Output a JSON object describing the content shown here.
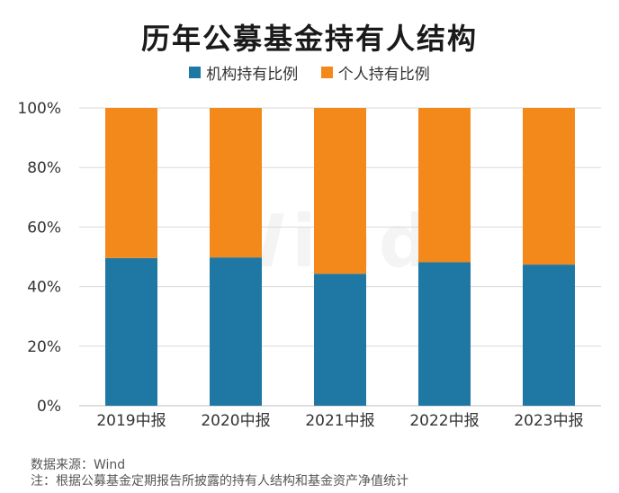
{
  "title": "历年公募基金持有人结构",
  "watermark": "Wind",
  "colors": {
    "institution": "#1f77a4",
    "individual": "#f4891b",
    "grid": "#d9d9d9",
    "axis": "#bfbfbf"
  },
  "chart_data": {
    "type": "bar",
    "stacked": true,
    "title": "历年公募基金持有人结构",
    "categories": [
      "2019中报",
      "2020中报",
      "2021中报",
      "2022中报",
      "2023中报"
    ],
    "series": [
      {
        "name": "机构持有比例",
        "values": [
          49.6,
          49.8,
          44.3,
          48.2,
          47.4
        ]
      },
      {
        "name": "个人持有比例",
        "values": [
          50.4,
          50.2,
          55.7,
          51.8,
          52.6
        ]
      }
    ],
    "yticks": [
      "0%",
      "20%",
      "40%",
      "60%",
      "80%",
      "100%"
    ],
    "ylim": [
      0,
      100
    ],
    "legend_position": "top-center",
    "grid": true
  },
  "footer": {
    "source": "数据来源：Wind",
    "note": "注：根据公募基金定期报告所披露的持有人结构和基金资产净值统计"
  }
}
